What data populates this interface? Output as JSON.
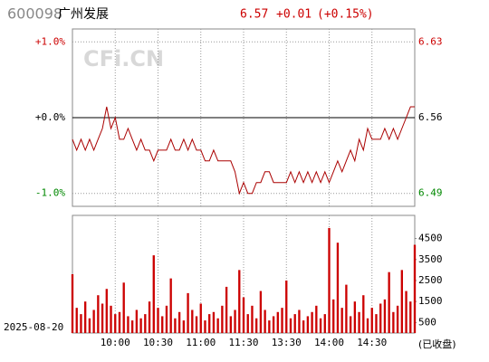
{
  "chart_data": {
    "type": "intraday",
    "stock_code": "600098",
    "stock_name": "广州发展",
    "last_price": 6.57,
    "change": "+0.01",
    "change_pct": "(+0.15%)",
    "watermark": "CFi.CN",
    "date": "2025-08-20",
    "status": "(已收盘)",
    "price_color": "#aa0000",
    "volume_color": "#cc0000",
    "up_color": "#cc0000",
    "down_color": "#008800",
    "flat_color": "#000000",
    "xlim": [
      0,
      80
    ],
    "xticks": [
      {
        "value": 10,
        "label": "10:00"
      },
      {
        "value": 20,
        "label": "10:30"
      },
      {
        "value": 30,
        "label": "11:00"
      },
      {
        "value": 40,
        "label": "11:30"
      },
      {
        "value": 50,
        "label": "13:30"
      },
      {
        "value": 60,
        "label": "14:00"
      },
      {
        "value": 70,
        "label": "14:30"
      }
    ],
    "ylim": [
      6.478,
      6.642
    ],
    "yticks": [
      6.63,
      6.56,
      6.49
    ],
    "y2lim": [
      -1.171,
      1.171
    ],
    "y2ticks": [
      {
        "value": 1.0,
        "label": "+1.0%"
      },
      {
        "value": 0,
        "label": "+0.0%"
      },
      {
        "value": -1.0,
        "label": "-1.0%"
      }
    ],
    "price": [
      6.54,
      6.53,
      6.54,
      6.53,
      6.54,
      6.53,
      6.54,
      6.55,
      6.57,
      6.55,
      6.56,
      6.54,
      6.54,
      6.55,
      6.54,
      6.53,
      6.54,
      6.53,
      6.53,
      6.52,
      6.53,
      6.53,
      6.53,
      6.54,
      6.53,
      6.53,
      6.54,
      6.53,
      6.54,
      6.53,
      6.53,
      6.52,
      6.52,
      6.53,
      6.52,
      6.52,
      6.52,
      6.52,
      6.51,
      6.49,
      6.5,
      6.49,
      6.49,
      6.5,
      6.5,
      6.51,
      6.51,
      6.5,
      6.5,
      6.5,
      6.5,
      6.51,
      6.5,
      6.51,
      6.5,
      6.51,
      6.5,
      6.51,
      6.5,
      6.51,
      6.5,
      6.51,
      6.52,
      6.51,
      6.52,
      6.53,
      6.52,
      6.54,
      6.53,
      6.55,
      6.54,
      6.54,
      6.54,
      6.55,
      6.54,
      6.55,
      6.54,
      6.55,
      6.56,
      6.57,
      6.57
    ],
    "vlim": [
      0,
      5600
    ],
    "vticks": [
      500,
      1500,
      2500,
      3500,
      4500
    ],
    "volume": [
      2800,
      1200,
      900,
      1500,
      700,
      1100,
      1800,
      1400,
      2100,
      1300,
      900,
      1000,
      2400,
      800,
      600,
      1100,
      700,
      900,
      1500,
      3700,
      1200,
      800,
      1300,
      2600,
      700,
      1000,
      600,
      1900,
      1100,
      800,
      1400,
      600,
      900,
      1000,
      700,
      1300,
      2200,
      800,
      1100,
      3000,
      1700,
      900,
      1300,
      700,
      2000,
      1100,
      600,
      800,
      1000,
      1200,
      2500,
      700,
      900,
      1100,
      600,
      800,
      1000,
      1300,
      700,
      900,
      5000,
      1600,
      4300,
      1200,
      2300,
      800,
      1500,
      1000,
      1800,
      700,
      1200,
      900,
      1400,
      1600,
      2900,
      1000,
      1300,
      3000,
      2000,
      1500,
      4200
    ]
  }
}
